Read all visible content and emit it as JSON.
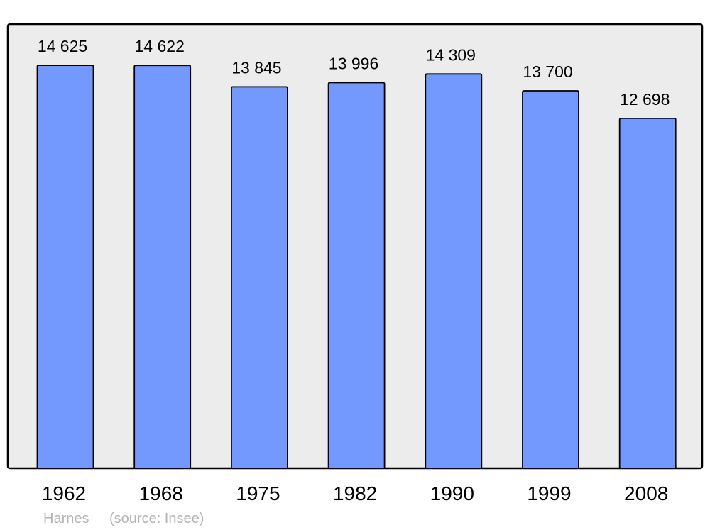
{
  "chart_data": {
    "type": "bar",
    "categories": [
      "1962",
      "1968",
      "1975",
      "1982",
      "1990",
      "1999",
      "2008"
    ],
    "values": [
      14625,
      14622,
      13845,
      13996,
      14309,
      13700,
      12698
    ],
    "value_labels": [
      "14 625",
      "14 622",
      "13 845",
      "13 996",
      "14 309",
      "13 700",
      "12 698"
    ],
    "title": "",
    "xlabel": "",
    "ylabel": "",
    "ylim": [
      0,
      16120
    ],
    "grid": false,
    "colors": {
      "bar": "#7399ff",
      "background": "#ececec",
      "border": "#000000",
      "footer_text": "#b3b3b3"
    }
  },
  "footer": {
    "place": "Harnes",
    "source": "(source: Insee)"
  }
}
